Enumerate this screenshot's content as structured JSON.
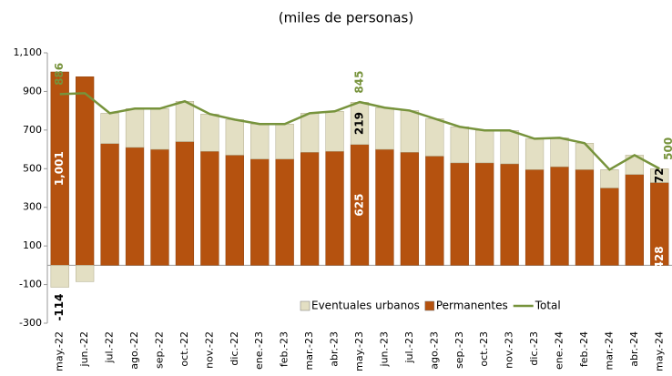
{
  "chart_data": {
    "type": "stacked-bar-line",
    "title": "(miles de personas)",
    "categories": [
      "may.-22",
      "jun.-22",
      "jul.-22",
      "ago.-22",
      "sep.-22",
      "oct.-22",
      "nov.-22",
      "dic.-22",
      "ene.-23",
      "feb.-23",
      "mar.-23",
      "abr.-23",
      "may.-23",
      "jun.-23",
      "jul.-23",
      "ago.-23",
      "sep.-23",
      "oct.-23",
      "nov.-23",
      "dic.-23",
      "ene.-24",
      "feb.-24",
      "mar.-24",
      "abr.-24",
      "may.-24"
    ],
    "series": [
      {
        "name": "Eventuales urbanos",
        "color": "#e3dfc3",
        "kind": "bar",
        "values": [
          -114,
          -85,
          157,
          201,
          211,
          209,
          193,
          184,
          181,
          181,
          202,
          207,
          219,
          216,
          216,
          194,
          187,
          168,
          173,
          160,
          150,
          137,
          95,
          100,
          72
        ],
        "value_labels": [
          "-114",
          null,
          null,
          null,
          null,
          null,
          null,
          null,
          null,
          null,
          null,
          null,
          "219",
          null,
          null,
          null,
          null,
          null,
          null,
          null,
          null,
          null,
          null,
          null,
          "72"
        ]
      },
      {
        "name": "Permanentes",
        "color": "#b5520f",
        "kind": "bar",
        "values": [
          1001,
          976,
          630,
          610,
          600,
          640,
          590,
          570,
          550,
          550,
          585,
          590,
          625,
          600,
          585,
          565,
          530,
          530,
          525,
          495,
          510,
          495,
          400,
          470,
          428
        ],
        "value_labels": [
          "1,001",
          null,
          null,
          null,
          null,
          null,
          null,
          null,
          null,
          null,
          null,
          null,
          "625",
          null,
          null,
          null,
          null,
          null,
          null,
          null,
          null,
          null,
          null,
          null,
          "428"
        ]
      },
      {
        "name": "Total",
        "color": "#77933c",
        "kind": "line",
        "values": [
          886,
          891,
          787,
          811,
          811,
          849,
          783,
          754,
          731,
          731,
          787,
          797,
          845,
          816,
          801,
          759,
          717,
          698,
          698,
          655,
          660,
          632,
          495,
          570,
          500
        ],
        "value_labels": [
          "886",
          null,
          null,
          null,
          null,
          null,
          null,
          null,
          null,
          null,
          null,
          null,
          "845",
          null,
          null,
          null,
          null,
          null,
          null,
          null,
          null,
          null,
          null,
          null,
          "500"
        ]
      }
    ],
    "ylim": [
      -300,
      1100
    ],
    "yticks": [
      -300,
      -100,
      100,
      300,
      500,
      700,
      900,
      {
        "value": 1100,
        "label": "1,100"
      }
    ],
    "legend": "bottom-right"
  }
}
